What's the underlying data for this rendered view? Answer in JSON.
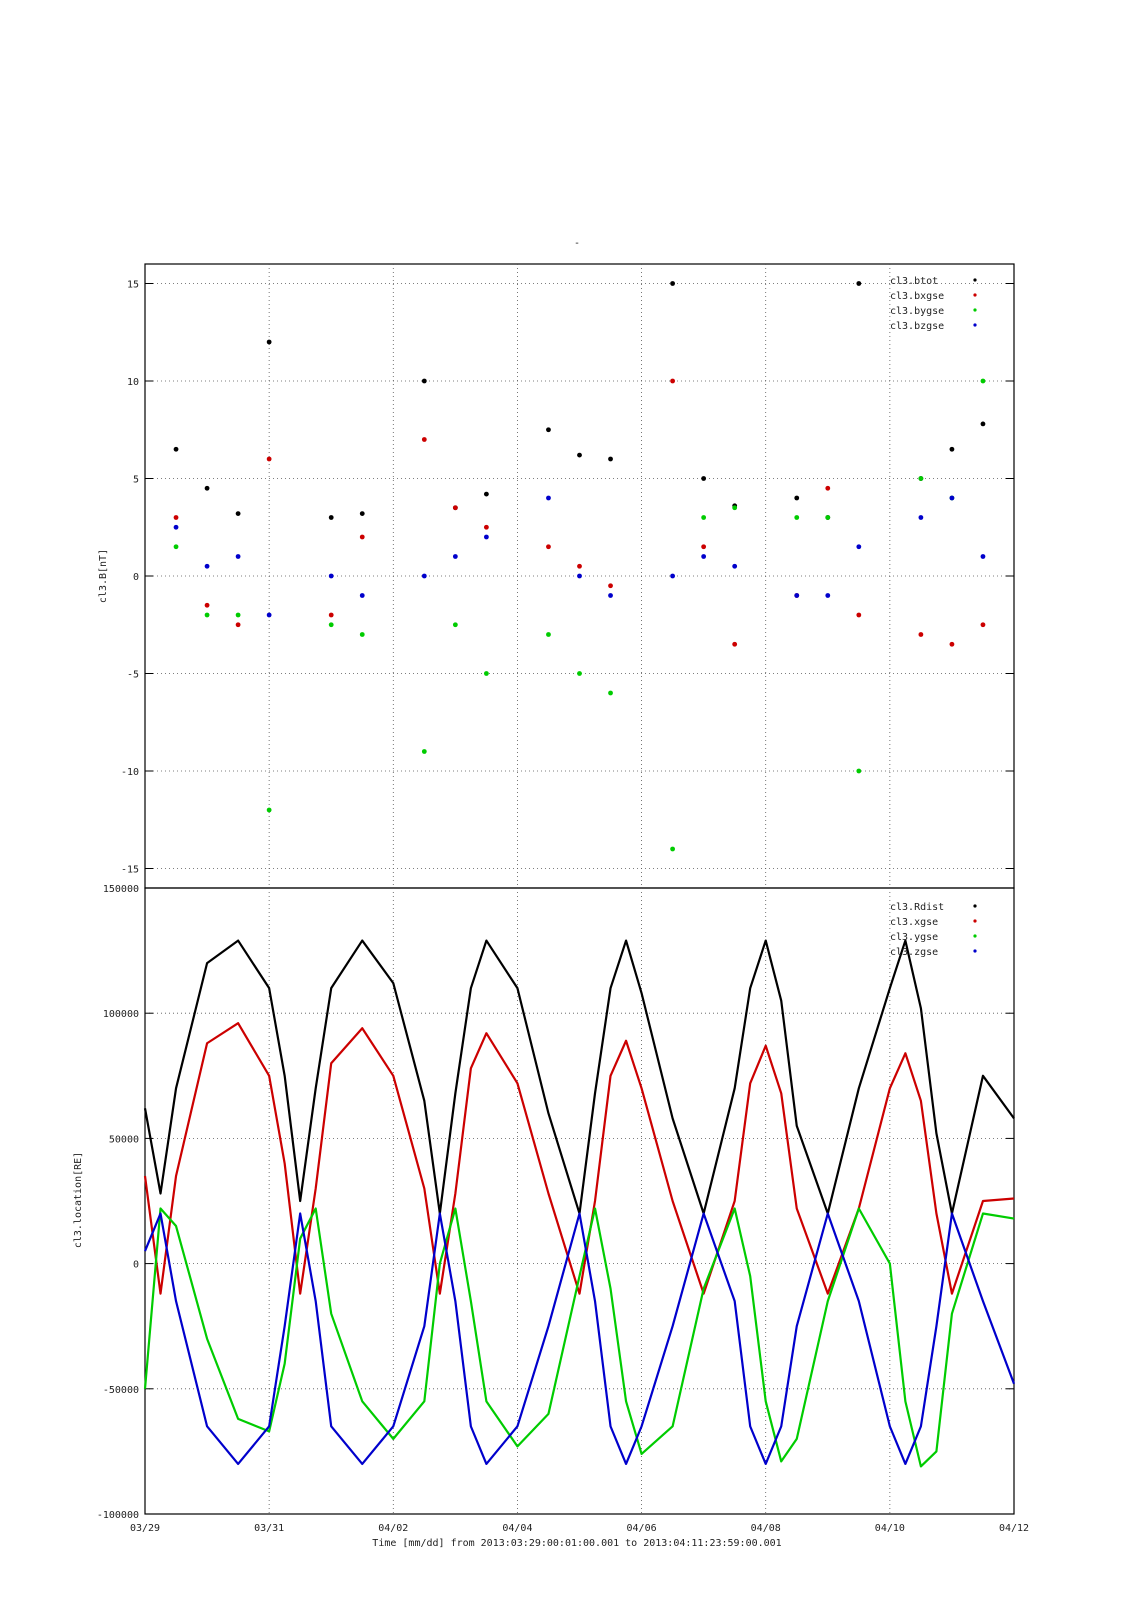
{
  "page_title": "-",
  "x_tick_labels": [
    "03/29",
    "03/31",
    "04/02",
    "04/04",
    "04/06",
    "04/08",
    "04/10",
    "04/12"
  ],
  "xlabel": "Time [mm/dd]  from 2013:03:29:00:01:00.001  to  2013:04:11:23:59:00.001",
  "chart_data": [
    {
      "type": "scatter",
      "title": "",
      "ylabel": "cl3.B[nT]",
      "xlim": [
        "2013-03-29",
        "2013-04-12"
      ],
      "ylim": [
        -16,
        16
      ],
      "yticks": [
        -15,
        -10,
        -5,
        0,
        5,
        10,
        15
      ],
      "grid": true,
      "legend_position": "top-right",
      "x_days": [
        0.5,
        1.0,
        1.5,
        2.0,
        3.0,
        3.5,
        4.5,
        5.0,
        5.5,
        6.5,
        7.0,
        7.5,
        8.5,
        9.0,
        9.5,
        10.5,
        11.0,
        11.5,
        12.5,
        13.0,
        13.5
      ],
      "series": [
        {
          "name": "cl3.btot",
          "color": "#000000",
          "values": [
            6.5,
            4.5,
            3.2,
            12.0,
            3.0,
            3.2,
            10.0,
            3.5,
            4.2,
            7.5,
            6.2,
            6.0,
            15.0,
            5.0,
            3.6,
            4.0,
            3.0,
            15.0,
            5.0,
            6.5,
            7.8
          ]
        },
        {
          "name": "cl3.bxgse",
          "color": "#cc0000",
          "values": [
            3.0,
            -1.5,
            -2.5,
            6.0,
            -2.0,
            2.0,
            7.0,
            3.5,
            2.5,
            1.5,
            0.5,
            -0.5,
            10.0,
            1.5,
            -3.5,
            -1.0,
            4.5,
            -2.0,
            -3.0,
            -3.5,
            -2.5
          ]
        },
        {
          "name": "cl3.bygse",
          "color": "#00cc00",
          "values": [
            1.5,
            -2.0,
            -2.0,
            -12.0,
            -2.5,
            -3.0,
            -9.0,
            -2.5,
            -5.0,
            -3.0,
            -5.0,
            -6.0,
            -14.0,
            3.0,
            3.5,
            3.0,
            3.0,
            -10.0,
            5.0,
            4.0,
            10.0
          ]
        },
        {
          "name": "cl3.bzgse",
          "color": "#0000cc",
          "values": [
            2.5,
            0.5,
            1.0,
            -2.0,
            0.0,
            -1.0,
            0.0,
            1.0,
            2.0,
            4.0,
            0.0,
            -1.0,
            0.0,
            1.0,
            0.5,
            -1.0,
            -1.0,
            1.5,
            3.0,
            4.0,
            1.0
          ]
        }
      ]
    },
    {
      "type": "line",
      "title": "",
      "ylabel": "cl3.location[RE]",
      "xlim": [
        "2013-03-29",
        "2013-04-12"
      ],
      "ylim": [
        -100000,
        150000
      ],
      "yticks": [
        -100000,
        -50000,
        0,
        50000,
        100000,
        150000
      ],
      "grid": true,
      "legend_position": "top-right",
      "x_days": [
        0.0,
        0.25,
        0.5,
        1.0,
        1.5,
        2.0,
        2.25,
        2.5,
        2.75,
        3.0,
        3.5,
        4.0,
        4.5,
        4.75,
        5.0,
        5.25,
        5.5,
        6.0,
        6.5,
        7.0,
        7.25,
        7.5,
        7.75,
        8.0,
        8.5,
        9.0,
        9.5,
        9.75,
        10.0,
        10.25,
        10.5,
        11.0,
        11.5,
        12.0,
        12.25,
        12.5,
        12.75,
        13.0,
        13.5,
        14.0
      ],
      "series": [
        {
          "name": "cl3.Rdist",
          "color": "#000000",
          "values": [
            62000,
            28000,
            70000,
            120000,
            129000,
            110000,
            75000,
            25000,
            70000,
            110000,
            129000,
            112000,
            65000,
            20000,
            68000,
            110000,
            129000,
            110000,
            60000,
            20000,
            68000,
            110000,
            129000,
            108000,
            58000,
            20000,
            70000,
            110000,
            129000,
            105000,
            55000,
            20000,
            70000,
            110000,
            129000,
            102000,
            52000,
            20000,
            75000,
            58000
          ]
        },
        {
          "name": "cl3.xgse",
          "color": "#cc0000",
          "values": [
            35000,
            -12000,
            35000,
            88000,
            96000,
            75000,
            40000,
            -12000,
            30000,
            80000,
            94000,
            75000,
            30000,
            -12000,
            28000,
            78000,
            92000,
            72000,
            28000,
            -12000,
            25000,
            75000,
            89000,
            70000,
            25000,
            -12000,
            25000,
            72000,
            87000,
            68000,
            22000,
            -12000,
            22000,
            70000,
            84000,
            65000,
            20000,
            -12000,
            25000,
            26000
          ]
        },
        {
          "name": "cl3.ygse",
          "color": "#00cc00",
          "values": [
            -50000,
            22000,
            15000,
            -30000,
            -62000,
            -67000,
            -40000,
            10000,
            22000,
            -20000,
            -55000,
            -70000,
            -55000,
            0,
            22000,
            -15000,
            -55000,
            -73000,
            -60000,
            -5000,
            22000,
            -10000,
            -55000,
            -76000,
            -65000,
            -10000,
            22000,
            -5000,
            -55000,
            -79000,
            -70000,
            -15000,
            22000,
            0,
            -55000,
            -81000,
            -75000,
            -20000,
            20000,
            18000
          ]
        },
        {
          "name": "cl3.zgse",
          "color": "#0000cc",
          "values": [
            5000,
            20000,
            -15000,
            -65000,
            -80000,
            -65000,
            -25000,
            20000,
            -15000,
            -65000,
            -80000,
            -65000,
            -25000,
            20000,
            -15000,
            -65000,
            -80000,
            -65000,
            -25000,
            20000,
            -15000,
            -65000,
            -80000,
            -65000,
            -25000,
            20000,
            -15000,
            -65000,
            -80000,
            -65000,
            -25000,
            20000,
            -15000,
            -65000,
            -80000,
            -65000,
            -25000,
            20000,
            -15000,
            -48000
          ]
        }
      ]
    }
  ]
}
